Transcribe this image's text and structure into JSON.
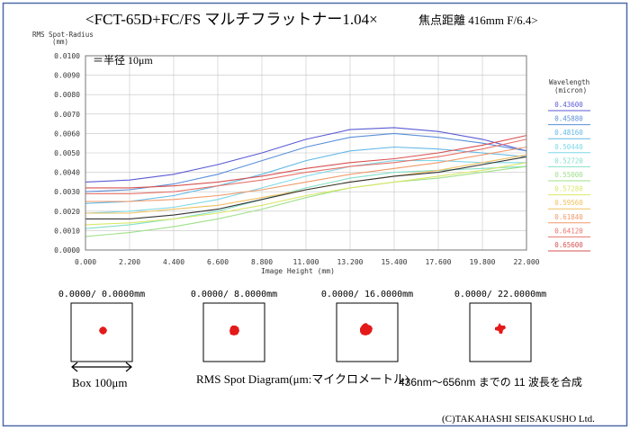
{
  "header": {
    "title": "<FCT-65D+FC/FS マルチフラットナー1.04×",
    "subtitle": "焦点距離 416mm F/6.4>"
  },
  "chart_data": {
    "type": "line",
    "ylabel": "RMS Spot-Radius",
    "ylabel_unit": "(mm)",
    "xlabel": "Image Height (mm)",
    "ylim": [
      0,
      0.01
    ],
    "xlim": [
      0,
      22
    ],
    "y_ticks": [
      "0.0000",
      "0.0010",
      "0.0020",
      "0.0030",
      "0.0040",
      "0.0050",
      "0.0060",
      "0.0070",
      "0.0080",
      "0.0090",
      "0.0100"
    ],
    "x_ticks": [
      "0.000",
      "2.200",
      "4.400",
      "6.600",
      "8.800",
      "11.000",
      "13.200",
      "15.400",
      "17.600",
      "19.800",
      "22.000"
    ],
    "grid": true,
    "annotation": "＝半径 10μm",
    "legend_title": "Wavelength",
    "legend_unit": "(micron)",
    "legend_placement": "right",
    "x": [
      0,
      2.2,
      4.4,
      6.6,
      8.8,
      11,
      13.2,
      15.4,
      17.6,
      19.8,
      22
    ],
    "series": [
      {
        "name": "0.43600",
        "color": "#5b5bd6",
        "values": [
          0.0035,
          0.0036,
          0.0039,
          0.0044,
          0.005,
          0.0057,
          0.0062,
          0.0063,
          0.0061,
          0.0057,
          0.0051
        ]
      },
      {
        "name": "0.45880",
        "color": "#5a8fd9",
        "values": [
          0.003,
          0.0031,
          0.0034,
          0.0039,
          0.0046,
          0.0053,
          0.0058,
          0.006,
          0.0058,
          0.0055,
          0.0051
        ]
      },
      {
        "name": "0.48160",
        "color": "#62b8e6",
        "values": [
          0.0024,
          0.0025,
          0.0028,
          0.0033,
          0.0039,
          0.0046,
          0.0051,
          0.0053,
          0.0052,
          0.005,
          0.0048
        ]
      },
      {
        "name": "0.50440",
        "color": "#7fd8e8",
        "values": [
          0.0019,
          0.002,
          0.0022,
          0.0026,
          0.0032,
          0.0038,
          0.0043,
          0.0046,
          0.0046,
          0.0045,
          0.0045
        ]
      },
      {
        "name": "0.52720",
        "color": "#84dfc7",
        "values": [
          0.0011,
          0.0013,
          0.0016,
          0.002,
          0.0026,
          0.0032,
          0.0037,
          0.004,
          0.0041,
          0.0042,
          0.0043
        ]
      },
      {
        "name": "0.55000",
        "color": "#9fe08a",
        "values": [
          0.0007,
          0.0009,
          0.0012,
          0.0016,
          0.0021,
          0.0027,
          0.0032,
          0.0035,
          0.0037,
          0.004,
          0.0043
        ]
      },
      {
        "name": "0.57280",
        "color": "#d9e86a",
        "values": [
          0.0013,
          0.0014,
          0.0016,
          0.0019,
          0.0023,
          0.0028,
          0.0032,
          0.0035,
          0.0038,
          0.0041,
          0.0045
        ]
      },
      {
        "name": "0.59560",
        "color": "#f0c060",
        "values": [
          0.0019,
          0.0019,
          0.0021,
          0.0023,
          0.0027,
          0.0031,
          0.0035,
          0.0038,
          0.0041,
          0.0045,
          0.0049
        ]
      },
      {
        "name": "0.61840",
        "color": "#f09a6a",
        "values": [
          0.0025,
          0.0025,
          0.0026,
          0.0028,
          0.0031,
          0.0035,
          0.0039,
          0.0042,
          0.0045,
          0.0049,
          0.0053
        ]
      },
      {
        "name": "0.64120",
        "color": "#e8746a",
        "values": [
          0.0029,
          0.0029,
          0.003,
          0.0033,
          0.0036,
          0.004,
          0.0043,
          0.0045,
          0.0048,
          0.0052,
          0.0057
        ]
      },
      {
        "name": "0.65600",
        "color": "#d95050",
        "values": [
          0.0032,
          0.0032,
          0.0033,
          0.0035,
          0.0038,
          0.0042,
          0.0045,
          0.0047,
          0.005,
          0.0054,
          0.0059
        ]
      },
      {
        "name": "",
        "color": "#333333",
        "values": [
          0.0016,
          0.0016,
          0.0018,
          0.0021,
          0.0026,
          0.0031,
          0.0035,
          0.0038,
          0.004,
          0.0044,
          0.0048
        ]
      }
    ]
  },
  "spot_diagrams": [
    {
      "label": "0.0000/ 0.0000mm"
    },
    {
      "label": "0.0000/ 8.0000mm"
    },
    {
      "label": "0.0000/ 16.0000mm"
    },
    {
      "label": "0.0000/ 22.0000mm"
    }
  ],
  "footer": {
    "box_label": "Box 100μm",
    "spot_caption": "RMS Spot Diagram(μm:マイクロメートル)",
    "note": "436nm～656nm までの 11 波長を合成",
    "copyright": "(C)TAKAHASHI SEISAKUSHO Ltd."
  },
  "colors": {
    "border": "#4f6aa8",
    "spot": "#e41a1a",
    "frame": "#000000",
    "grid": "#c4c4c4"
  }
}
